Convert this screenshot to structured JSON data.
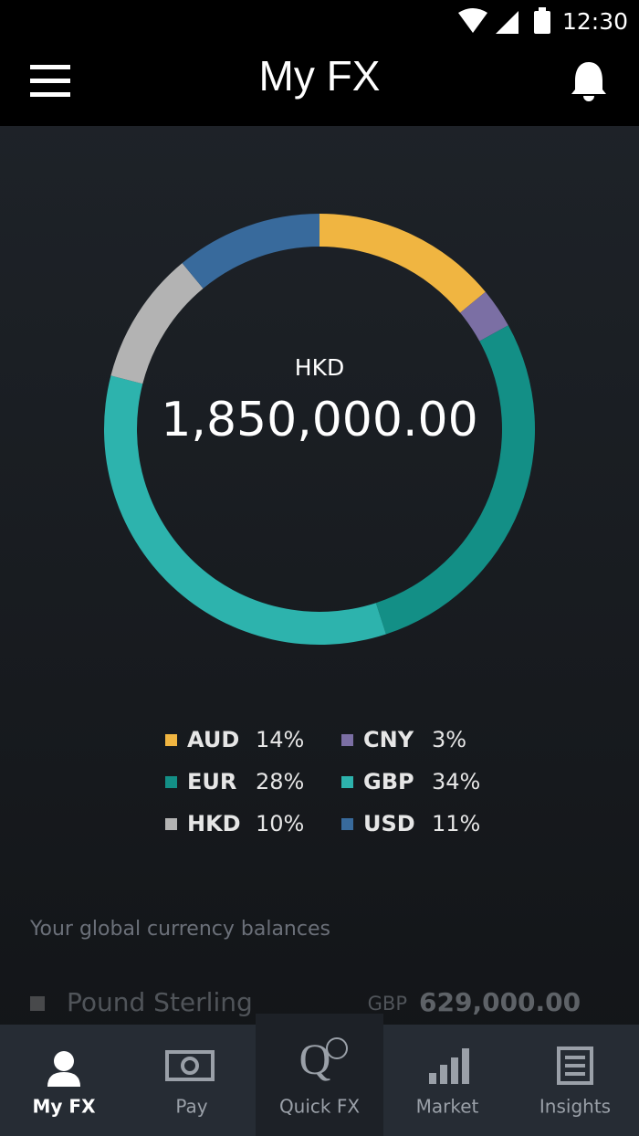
{
  "status_bar": {
    "time": "12:30"
  },
  "header": {
    "title": "My FX"
  },
  "chart_data": {
    "type": "pie",
    "center_label": "HKD",
    "center_value": "1,850,000.00",
    "categories": [
      "AUD",
      "CNY",
      "EUR",
      "GBP",
      "HKD",
      "USD"
    ],
    "values": [
      14,
      3,
      28,
      34,
      10,
      11
    ],
    "value_labels": [
      "14%",
      "3%",
      "28%",
      "34%",
      "10%",
      "11%"
    ],
    "colors": [
      "#f0b541",
      "#7b6fa4",
      "#138f86",
      "#2db3ad",
      "#b3b3b3",
      "#386a9c"
    ]
  },
  "balances": {
    "heading": "Your global currency balances",
    "rows": [
      {
        "name": "Pound Sterling",
        "code": "GBP",
        "amount": "629,000.00"
      }
    ]
  },
  "nav": {
    "items": [
      "My FX",
      "Pay",
      "Quick FX",
      "Market",
      "Insights"
    ]
  }
}
